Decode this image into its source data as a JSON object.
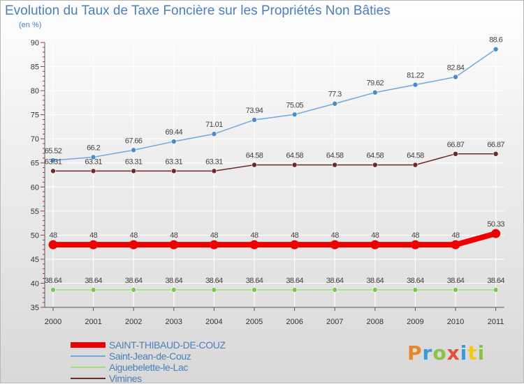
{
  "title": "Evolution du Taux de Taxe Foncière sur les Propriétés Non Bâties",
  "unit_label": "(en %)",
  "logo": {
    "text": "Proxiti",
    "colors": [
      "#e8862a",
      "#3a9ad9",
      "#8bc34a",
      "#e84c3d",
      "#3a9ad9",
      "#f5c71a",
      "#8bc34a"
    ]
  },
  "chart_data": {
    "type": "line",
    "title": "Evolution du Taux de Taxe Foncière sur les Propriétés Non Bâties",
    "ylabel": "(en %)",
    "categories": [
      "2000",
      "2001",
      "2002",
      "2003",
      "2004",
      "2005",
      "2006",
      "2007",
      "2008",
      "2009",
      "2010",
      "2011"
    ],
    "yticks": [
      "35",
      "40",
      "45",
      "50",
      "55",
      "60",
      "65",
      "70",
      "75",
      "80",
      "85",
      "90"
    ],
    "ylim": [
      35,
      90
    ],
    "grid": true,
    "legend_position": "bottom-left",
    "series": [
      {
        "name": "Saint-Jean-de-Couz",
        "color": "#6fa8dc",
        "marker": "#4a8bc9",
        "values": [
          65.52,
          66.2,
          67.66,
          69.44,
          71.01,
          73.94,
          75.05,
          77.3,
          79.62,
          81.22,
          82.84,
          88.6
        ],
        "labels": [
          "65.52",
          "66.2",
          "67.66",
          "69.44",
          "71.01",
          "73.94",
          "75.05",
          "77.3",
          "79.62",
          "81.22",
          "82.84",
          "88.6"
        ]
      },
      {
        "name": "Vimines",
        "color": "#6b2a2a",
        "marker": "#6b2a2a",
        "values": [
          63.31,
          63.31,
          63.31,
          63.31,
          63.31,
          64.58,
          64.58,
          64.58,
          64.58,
          64.58,
          66.87,
          66.87
        ],
        "labels": [
          "63.31",
          "63.31",
          "63.31",
          "63.31",
          "63.31",
          "64.58",
          "64.58",
          "64.58",
          "64.58",
          "64.58",
          "66.87",
          "66.87"
        ]
      },
      {
        "name": "SAINT-THIBAUD-DE-COUZ",
        "color": "#ee0000",
        "marker": "#ee0000",
        "values": [
          48,
          48,
          48,
          48,
          48,
          48,
          48,
          48,
          48,
          48,
          48,
          50.33
        ],
        "labels": [
          "48",
          "48",
          "48",
          "48",
          "48",
          "48",
          "48",
          "48",
          "48",
          "48",
          "48",
          "50.33"
        ]
      },
      {
        "name": "Aiguebelette-le-Lac",
        "color": "#9ee07a",
        "marker": "#7cc74f",
        "values": [
          38.64,
          38.64,
          38.64,
          38.64,
          38.64,
          38.64,
          38.64,
          38.64,
          38.64,
          38.64,
          38.64,
          38.64
        ],
        "labels": [
          "38.64",
          "38.64",
          "38.64",
          "38.64",
          "38.64",
          "38.64",
          "38.64",
          "38.64",
          "38.64",
          "38.64",
          "38.64",
          "38.64"
        ]
      }
    ],
    "legend": [
      {
        "name": "SAINT-THIBAUD-DE-COUZ",
        "color": "#ee0000",
        "emphasis": "thick"
      },
      {
        "name": "Saint-Jean-de-Couz",
        "color": "#6fa8dc",
        "emphasis": "thin"
      },
      {
        "name": "Aiguebelette-le-Lac",
        "color": "#9ee07a",
        "emphasis": "thin"
      },
      {
        "name": "Vimines",
        "color": "#6b2a2a",
        "emphasis": "thin"
      }
    ]
  }
}
